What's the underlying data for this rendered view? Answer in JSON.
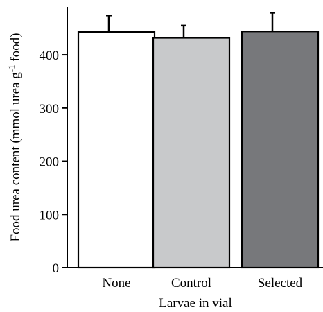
{
  "chart_data": {
    "type": "bar",
    "categories": [
      "None",
      "Control",
      "Selected"
    ],
    "values": [
      443,
      432,
      444
    ],
    "errors": [
      31,
      23,
      35
    ],
    "colors": [
      "#ffffff",
      "#c8c9cb",
      "#77787b"
    ],
    "xlabel": "Larvae in vial",
    "ylabel": "Food urea content (mmol urea g",
    "ylabel_superscript": "-1",
    "ylabel_suffix": " food)",
    "ylim": [
      0,
      490
    ],
    "yticks": [
      "0",
      "100",
      "200",
      "300",
      "400"
    ]
  }
}
